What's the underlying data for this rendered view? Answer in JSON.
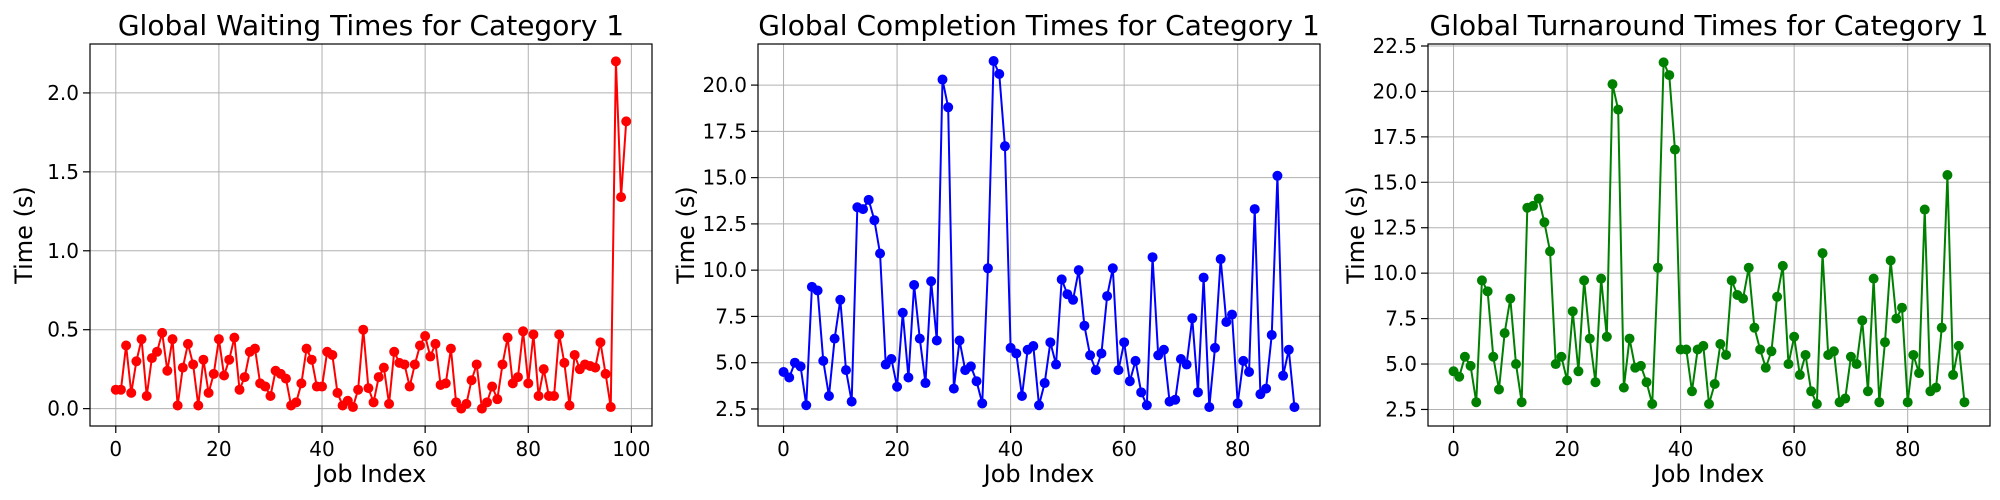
{
  "chart_data": [
    {
      "type": "line",
      "title": "Global Waiting Times for Category 1",
      "xlabel": "Job Index",
      "ylabel": "Time (s)",
      "color": "#ff0000",
      "xlim": [
        -5,
        104
      ],
      "ylim": [
        -0.11,
        2.31
      ],
      "xticks": [
        0,
        20,
        40,
        60,
        80,
        100
      ],
      "yticks": [
        0.0,
        0.5,
        1.0,
        1.5,
        2.0
      ],
      "ytick_decimals": 1,
      "grid": true,
      "x_start": 0,
      "values": [
        0.12,
        0.12,
        0.4,
        0.1,
        0.3,
        0.44,
        0.08,
        0.32,
        0.36,
        0.48,
        0.24,
        0.44,
        0.02,
        0.26,
        0.41,
        0.28,
        0.02,
        0.31,
        0.1,
        0.22,
        0.44,
        0.21,
        0.31,
        0.45,
        0.12,
        0.2,
        0.36,
        0.38,
        0.16,
        0.14,
        0.08,
        0.24,
        0.22,
        0.19,
        0.02,
        0.04,
        0.16,
        0.38,
        0.31,
        0.14,
        0.14,
        0.36,
        0.34,
        0.1,
        0.02,
        0.05,
        0.01,
        0.12,
        0.5,
        0.13,
        0.04,
        0.2,
        0.26,
        0.03,
        0.36,
        0.29,
        0.28,
        0.14,
        0.28,
        0.4,
        0.46,
        0.33,
        0.41,
        0.15,
        0.16,
        0.38,
        0.04,
        0.0,
        0.03,
        0.18,
        0.28,
        0.0,
        0.04,
        0.14,
        0.06,
        0.28,
        0.45,
        0.16,
        0.2,
        0.49,
        0.16,
        0.47,
        0.08,
        0.25,
        0.08,
        0.08,
        0.47,
        0.29,
        0.02,
        0.34,
        0.25,
        0.28,
        0.27,
        0.26,
        0.42,
        0.22,
        0.01,
        2.2,
        1.34,
        1.82
      ]
    },
    {
      "type": "line",
      "title": "Global Completion Times for Category 1",
      "xlabel": "Job Index",
      "ylabel": "Time (s)",
      "color": "#0000ff",
      "xlim": [
        -4.5,
        94.5
      ],
      "ylim": [
        1.58,
        22.22
      ],
      "xticks": [
        0,
        20,
        40,
        60,
        80
      ],
      "yticks": [
        2.5,
        5.0,
        7.5,
        10.0,
        12.5,
        15.0,
        17.5,
        20.0
      ],
      "ytick_decimals": 1,
      "grid": true,
      "x_start": 0,
      "values": [
        4.5,
        4.2,
        5.0,
        4.8,
        2.7,
        9.1,
        8.9,
        5.1,
        3.2,
        6.3,
        8.4,
        4.6,
        2.9,
        13.4,
        13.3,
        13.8,
        12.7,
        10.9,
        4.9,
        5.2,
        3.7,
        7.7,
        4.2,
        9.2,
        6.3,
        3.9,
        9.4,
        6.2,
        20.3,
        18.8,
        3.6,
        6.2,
        4.6,
        4.8,
        4.0,
        2.8,
        10.1,
        21.3,
        20.6,
        16.7,
        5.8,
        5.5,
        3.2,
        5.7,
        5.9,
        2.7,
        3.9,
        6.1,
        4.9,
        9.5,
        8.7,
        8.4,
        10.0,
        7.0,
        5.4,
        4.6,
        5.5,
        8.6,
        10.1,
        4.6,
        6.1,
        4.0,
        5.1,
        3.4,
        2.7,
        10.7,
        5.4,
        5.7,
        2.9,
        3.0,
        5.2,
        4.9,
        7.4,
        3.4,
        9.6,
        2.6,
        5.8,
        10.6,
        7.2,
        7.6,
        2.8,
        5.1,
        4.5,
        13.3,
        3.3,
        3.6,
        6.5,
        15.1,
        4.3,
        5.7,
        2.6
      ]
    },
    {
      "type": "line",
      "title": "Global Turnaround Times for Category 1",
      "xlabel": "Job Index",
      "ylabel": "Time (s)",
      "color": "#008000",
      "xlim": [
        -4.5,
        94.5
      ],
      "ylim": [
        1.59,
        22.61
      ],
      "xticks": [
        0,
        20,
        40,
        60,
        80
      ],
      "yticks": [
        2.5,
        5.0,
        7.5,
        10.0,
        12.5,
        15.0,
        17.5,
        20.0,
        22.5
      ],
      "ytick_decimals": 1,
      "grid": true,
      "x_start": 0,
      "values": [
        4.6,
        4.3,
        5.4,
        4.9,
        2.9,
        9.6,
        9.0,
        5.4,
        3.6,
        6.7,
        8.6,
        5.0,
        2.9,
        13.6,
        13.7,
        14.1,
        12.8,
        11.2,
        5.0,
        5.4,
        4.1,
        7.9,
        4.6,
        9.6,
        6.4,
        4.0,
        9.7,
        6.5,
        20.4,
        19.0,
        3.7,
        6.4,
        4.8,
        4.9,
        4.0,
        2.8,
        10.3,
        21.6,
        20.9,
        16.8,
        5.8,
        5.8,
        3.5,
        5.8,
        6.0,
        2.8,
        3.9,
        6.1,
        5.5,
        9.6,
        8.8,
        8.6,
        10.3,
        7.0,
        5.8,
        4.8,
        5.7,
        8.7,
        10.4,
        5.0,
        6.5,
        4.4,
        5.5,
        3.5,
        2.8,
        11.1,
        5.5,
        5.7,
        2.9,
        3.1,
        5.4,
        5.0,
        7.4,
        3.5,
        9.7,
        2.9,
        6.2,
        10.7,
        7.5,
        8.1,
        2.9,
        5.5,
        4.5,
        13.5,
        3.5,
        3.7,
        7.0,
        15.4,
        4.4,
        6.0,
        2.9
      ]
    }
  ]
}
